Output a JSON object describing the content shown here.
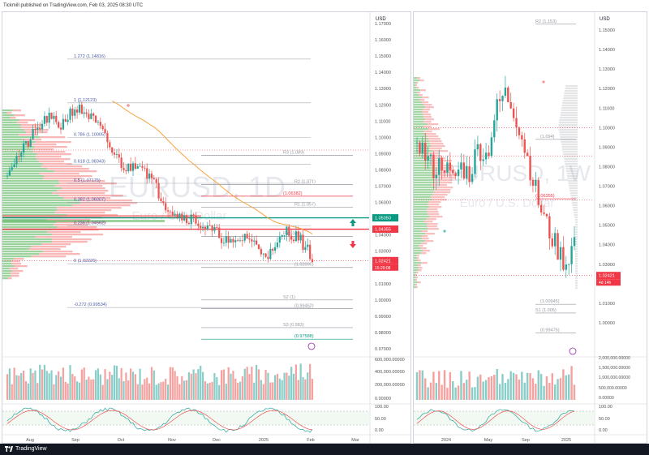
{
  "header": {
    "published_text": "Tickmill published on TradingView.com, Feb 03, 2025 08:30 UTC"
  },
  "footer": {
    "brand": "TradingView"
  },
  "colors": {
    "up": "#26a69a",
    "down": "#ef5350",
    "ema": "#f7a440",
    "fib": "#9598a1",
    "fib_dark": "#5b6bbf",
    "price_red": "#f23645",
    "green_level": "#089981",
    "vp_green": "#4caf50",
    "vp_red": "#f06262",
    "stoch_k": "#26a69a",
    "stoch_d": "#ef5350"
  },
  "left_chart": {
    "watermark_symbol": "EURUSD, 1D",
    "watermark_name": "Euro / U.S. Dollar",
    "currency": "USD",
    "y_labels": [
      "1.17000",
      "1.16000",
      "1.15000",
      "1.14000",
      "1.13000",
      "1.12000",
      "1.11000",
      "1.10000",
      "1.09000",
      "1.08000",
      "1.07000",
      "1.06000",
      "1.05000",
      "1.04000",
      "1.03000",
      "1.02000",
      "1.01000",
      "1.00000",
      "0.99000",
      "0.98000",
      "0.97000"
    ],
    "x_labels": [
      "Aug",
      "Sep",
      "Oct",
      "Nov",
      "Dec",
      "2025",
      "Feb",
      "Mar"
    ],
    "fib_labels": [
      {
        "label": "1.272 (1.14816)",
        "price": 1.14816
      },
      {
        "label": "1 (1.12123)",
        "price": 1.12123
      },
      {
        "label": "0.786 (1.10005)",
        "price": 1.10005
      },
      {
        "label": "0.618 (1.08343)",
        "price": 1.08343
      },
      {
        "label": "0.5 (1.07175)",
        "price": 1.07175
      },
      {
        "label": "0.382 (1.06007)",
        "price": 1.06007
      },
      {
        "label": "0.236 (1.04562)",
        "price": 1.04562
      },
      {
        "label": "0 (1.02226)",
        "price": 1.02226
      },
      {
        "label": "-0.272 (0.99534)",
        "price": 0.99534
      }
    ],
    "pivot_labels": [
      {
        "label": "R3 (1.089)",
        "price": 1.089
      },
      {
        "label": "R2 (1.071)",
        "price": 1.071
      },
      {
        "label": "(1.06382)",
        "price": 1.06382
      },
      {
        "label": "R1 (1.057)",
        "price": 1.057
      },
      {
        "label": "P (1.039)",
        "price": 1.039
      },
      {
        "label": "(1.02000)",
        "price": 1.02
      },
      {
        "label": "S2 (1)",
        "price": 1.0
      },
      {
        "label": "(0.99462)",
        "price": 0.99462
      },
      {
        "label": "S3 (0.983)",
        "price": 0.983
      },
      {
        "label": "(0.97588)",
        "price": 0.97588
      }
    ],
    "price_badges": [
      {
        "text": "1.05050",
        "color": "#089981",
        "price": 1.0505
      },
      {
        "text": "1.04355",
        "color": "#f23645",
        "price": 1.04355
      },
      {
        "text": "1.02421",
        "color": "#f23645",
        "price": 1.02421
      }
    ],
    "countdown": "15:29:08",
    "volume_labels": [
      "600,000.00000",
      "400,000.00000",
      "200,000.00000",
      "0.00000"
    ],
    "stoch_labels": [
      "100.00",
      "50.00",
      "0.00"
    ]
  },
  "right_chart": {
    "watermark_symbol": "EURUSD, 1W",
    "watermark_name": "Euro / U.S. Dollar",
    "currency": "USD",
    "y_labels": [
      "1.15000",
      "1.14000",
      "1.13000",
      "1.12000",
      "1.11000",
      "1.10000",
      "1.09000",
      "1.08000",
      "1.07000",
      "1.06000",
      "1.05000",
      "1.04000",
      "1.03000",
      "1.02000",
      "1.01000",
      "1.00000"
    ],
    "x_labels": [
      "2024",
      "May",
      "Sep",
      "2025"
    ],
    "level_labels": [
      {
        "label": "R2 (1.153)",
        "price": 1.153
      },
      {
        "label": "(1.094)",
        "price": 1.094
      },
      {
        "label": "(1.06355)",
        "price": 1.06355
      },
      {
        "label": "(1.00945)",
        "price": 1.00945
      },
      {
        "label": "S1 (1.005)",
        "price": 1.005
      },
      {
        "label": "(0.99475)",
        "price": 0.99475
      }
    ],
    "price_badge": {
      "text": "1.02421",
      "color": "#f23645",
      "price": 1.02421
    },
    "countdown": "4d 14h",
    "volume_labels": [
      "2,000,000.00000",
      "1,500,000.00000",
      "1,000,000.00000",
      "500,000.00000",
      "0.00000"
    ],
    "stoch_labels": [
      "100.00",
      "50.00",
      "0.00"
    ]
  },
  "chart_data": [
    {
      "type": "line",
      "title": "EURUSD, 1D",
      "subtitle": "Euro / U.S. Dollar",
      "ylabel": "USD",
      "ylim": [
        0.965,
        1.175
      ],
      "x": [
        "Aug",
        "Sep",
        "Oct",
        "Nov",
        "Dec",
        "2025",
        "Feb"
      ],
      "series": [
        {
          "values": [
            1.082,
            1.105,
            1.118,
            1.088,
            1.055,
            1.038,
            1.024
          ]
        }
      ],
      "legend": "none",
      "grid": false
    },
    {
      "type": "line",
      "title": "EURUSD, 1W",
      "subtitle": "Euro / U.S. Dollar",
      "ylabel": "USD",
      "ylim": [
        0.995,
        1.155
      ],
      "x": [
        "2024",
        "May",
        "Sep",
        "2025"
      ],
      "series": [
        {
          "values": [
            1.085,
            1.078,
            1.118,
            1.024
          ]
        }
      ],
      "legend": "none",
      "grid": false
    }
  ]
}
